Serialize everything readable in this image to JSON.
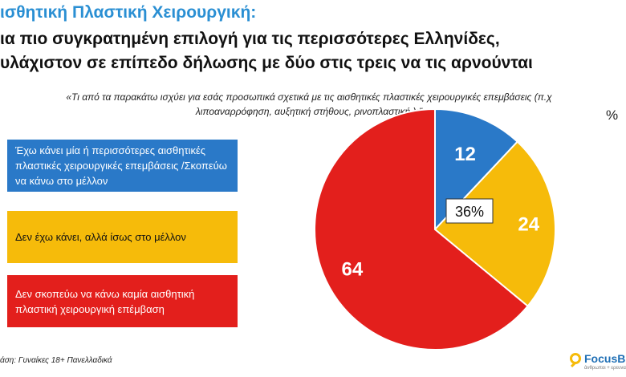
{
  "header": {
    "title_line1": "ισθητική Πλαστική Χειρουργική:",
    "title_line2": "ια πιο συγκρατημένη επιλογή για τις περισσότερες Ελληνίδες,",
    "title_line3": "υλάχιστον σε επίπεδο δήλωσης με δύο στις τρεις να τις αρνούνται",
    "question": "«Τι από τα παρακάτω ισχύει για εσάς προσωπικά σχετικά με τις αισθητικές πλαστικές χειρουργικές επεμβάσεις (π.χ λιποαναρρόφηση, αυξητική στήθους, ρινοπλαστική );\"",
    "unit": "%"
  },
  "chart_data": {
    "type": "pie",
    "slices": [
      {
        "label": "Έχω κάνει μία ή περισσότερες αισθητικές πλαστικές χειρουργικές επεμβάσεις /Σκοπεύω να κάνω στο μέλλον",
        "value": 12,
        "color": "#2a79c8"
      },
      {
        "label": "Δεν έχω κάνει, αλλά ίσως στο μέλλον",
        "value": 24,
        "color": "#f6bb0a"
      },
      {
        "label": "Δεν σκοπεύω να κάνω καμία  αισθητική πλαστική χειρουργική επέμβαση",
        "value": 64,
        "color": "#e31f1c"
      }
    ],
    "annotation": "36%",
    "unit": "%"
  },
  "footer": {
    "base": "άση: Γυναίκες 18+ Πανελλαδικά",
    "logo_text": "FocusB",
    "logo_tagline": "άνθρωποι + ερευνα"
  }
}
